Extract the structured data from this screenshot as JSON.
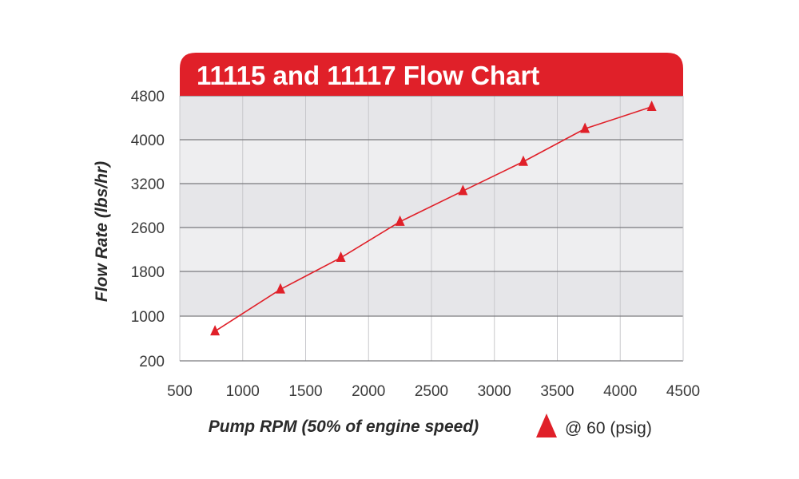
{
  "chart_data": {
    "type": "line",
    "title": "11115 and 11117 Flow Chart",
    "xlabel": "Pump RPM (50% of engine speed)",
    "ylabel": "Flow Rate (lbs/hr)",
    "xlim": [
      500,
      4500
    ],
    "ylim": [
      200,
      4800
    ],
    "x_ticks": [
      500,
      1000,
      1500,
      2000,
      2500,
      3000,
      3500,
      4000,
      4500
    ],
    "y_ticks": [
      200,
      1000,
      1800,
      2600,
      3200,
      4000,
      4800
    ],
    "grid": true,
    "legend": "bottom-right",
    "series": [
      {
        "name": "@ 60 (psig)",
        "color": "#e02029",
        "marker": "triangle",
        "x": [
          780,
          1300,
          1780,
          2250,
          2750,
          3230,
          3720,
          4250
        ],
        "y": [
          730,
          1480,
          2050,
          2680,
          3100,
          3600,
          4200,
          4600
        ]
      }
    ]
  }
}
